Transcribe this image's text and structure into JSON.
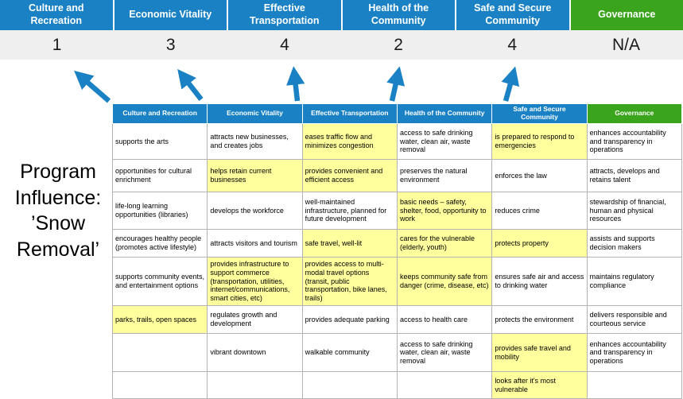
{
  "title": "Program Influence: ’Snow Removal’",
  "colors": {
    "blue": "#1a82c4",
    "green": "#3aa41c",
    "highlight": "#ffff9e",
    "score_band": "#efefef"
  },
  "summary": {
    "columns": [
      {
        "label": "Culture and Recreation",
        "score": "1",
        "type": "blue"
      },
      {
        "label": "Economic Vitality",
        "score": "3",
        "type": "blue"
      },
      {
        "label": "Effective Transportation",
        "score": "4",
        "type": "blue"
      },
      {
        "label": "Health of the Community",
        "score": "2",
        "type": "blue"
      },
      {
        "label": "Safe and Secure Community",
        "score": "4",
        "type": "blue"
      },
      {
        "label": "Governance",
        "score": "N/A",
        "type": "green"
      }
    ]
  },
  "matrix": {
    "headers": [
      {
        "label": "Culture and Recreation",
        "type": "blue"
      },
      {
        "label": "Economic Vitality",
        "type": "blue"
      },
      {
        "label": "Effective Transportation",
        "type": "blue"
      },
      {
        "label": "Health of the Community",
        "type": "blue"
      },
      {
        "label": "Safe and Secure Community",
        "type": "blue"
      },
      {
        "label": "Governance",
        "type": "green"
      }
    ],
    "rows": [
      [
        {
          "text": "supports the arts",
          "highlight": false
        },
        {
          "text": "attracts new businesses, and creates jobs",
          "highlight": false
        },
        {
          "text": "eases traffic flow and minimizes congestion",
          "highlight": true
        },
        {
          "text": "access to safe drinking water, clean air, waste removal",
          "highlight": false
        },
        {
          "text": "is prepared to respond to emergencies",
          "highlight": true
        },
        {
          "text": "enhances accountability and transparency in operations",
          "highlight": false
        }
      ],
      [
        {
          "text": "opportunities for cultural enrichment",
          "highlight": false
        },
        {
          "text": "helps retain current businesses",
          "highlight": true
        },
        {
          "text": "provides convenient and efficient access",
          "highlight": true
        },
        {
          "text": "preserves the natural environment",
          "highlight": false
        },
        {
          "text": "enforces the law",
          "highlight": false
        },
        {
          "text": "attracts, develops and retains talent",
          "highlight": false
        }
      ],
      [
        {
          "text": "life-long learning opportunities (libraries)",
          "highlight": false
        },
        {
          "text": "develops the workforce",
          "highlight": false
        },
        {
          "text": "well-maintained infrastructure, planned for future development",
          "highlight": false
        },
        {
          "text": "basic needs – safety, shelter, food, opportunity to work",
          "highlight": true
        },
        {
          "text": "reduces crime",
          "highlight": false
        },
        {
          "text": "stewardship of financial, human and physical resources",
          "highlight": false
        }
      ],
      [
        {
          "text": "encourages healthy people (promotes active lifestyle)",
          "highlight": false
        },
        {
          "text": "attracts visitors and tourism",
          "highlight": false
        },
        {
          "text": "safe travel, well-lit",
          "highlight": true
        },
        {
          "text": "cares for the vulnerable (elderly, youth)",
          "highlight": true
        },
        {
          "text": "protects property",
          "highlight": true
        },
        {
          "text": "assists and supports decision makers",
          "highlight": false
        }
      ],
      [
        {
          "text": "supports community events, and entertainment options",
          "highlight": false
        },
        {
          "text": "provides infrastructure to support commerce (transportation, utilities, internet/communications, smart cities, etc)",
          "highlight": true
        },
        {
          "text": "provides access to multi-modal travel options (transit, public transportation, bike lanes, trails)",
          "highlight": true
        },
        {
          "text": "keeps community safe from danger (crime, disease, etc)",
          "highlight": true
        },
        {
          "text": "ensures safe air and access to drinking water",
          "highlight": false
        },
        {
          "text": "maintains regulatory compliance",
          "highlight": false
        }
      ],
      [
        {
          "text": "parks, trails, open spaces",
          "highlight": true
        },
        {
          "text": "regulates growth and development",
          "highlight": false
        },
        {
          "text": "provides adequate parking",
          "highlight": false
        },
        {
          "text": "access to health care",
          "highlight": false
        },
        {
          "text": "protects the environment",
          "highlight": false
        },
        {
          "text": "delivers responsible and courteous service",
          "highlight": false
        }
      ],
      [
        {
          "text": "",
          "highlight": false
        },
        {
          "text": "vibrant downtown",
          "highlight": false
        },
        {
          "text": "walkable community",
          "highlight": false
        },
        {
          "text": "access to safe drinking water, clean air, waste removal",
          "highlight": false
        },
        {
          "text": "provides safe travel and mobility",
          "highlight": true
        },
        {
          "text": "enhances accountability and transparency in operations",
          "highlight": false
        }
      ],
      [
        {
          "text": "",
          "highlight": false
        },
        {
          "text": "",
          "highlight": false
        },
        {
          "text": "",
          "highlight": false
        },
        {
          "text": "",
          "highlight": false
        },
        {
          "text": "looks after it's most vulnerable",
          "highlight": true
        },
        {
          "text": "",
          "highlight": false
        }
      ]
    ]
  }
}
